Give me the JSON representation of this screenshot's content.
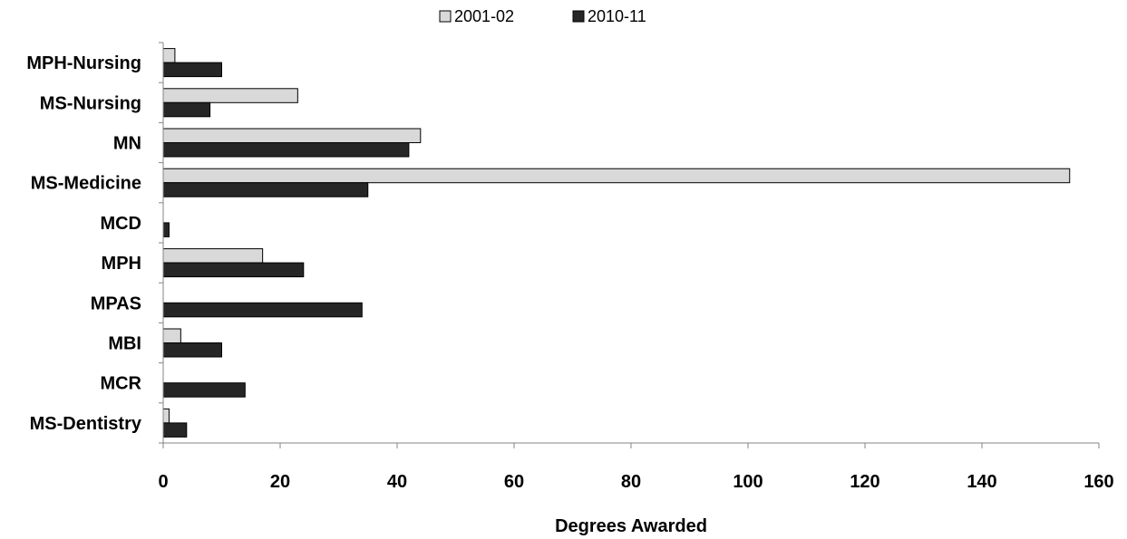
{
  "chart_data": {
    "type": "bar",
    "orientation": "horizontal",
    "categories": [
      "MPH-Nursing",
      "MS-Nursing",
      "MN",
      "MS-Medicine",
      "MCD",
      "MPH",
      "MPAS",
      "MBI",
      "MCR",
      "MS-Dentistry"
    ],
    "series": [
      {
        "name": "2001-02",
        "color": "#d9d9d9",
        "values": [
          2,
          23,
          44,
          155,
          0,
          17,
          0,
          3,
          0,
          1
        ]
      },
      {
        "name": "2010-11",
        "color": "#262626",
        "values": [
          10,
          8,
          42,
          35,
          1,
          24,
          34,
          10,
          14,
          4
        ]
      }
    ],
    "xlabel": "Degrees Awarded",
    "ylabel": "",
    "xlim": [
      0,
      160
    ],
    "xticks": [
      0,
      20,
      40,
      60,
      80,
      100,
      120,
      140,
      160
    ],
    "grid": false,
    "legend_position": "top-center"
  }
}
